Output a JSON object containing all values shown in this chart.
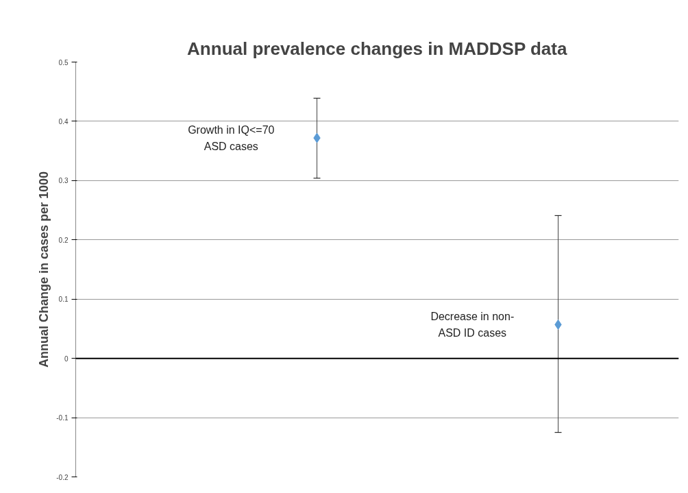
{
  "chart_data": {
    "type": "scatter",
    "title": "Annual prevalence changes in MADDSP data",
    "ylabel": "Annual Change in cases per 1000",
    "categories": [
      null,
      null
    ],
    "series": [
      {
        "color": "#5b9bd5",
        "values": [
          0.372,
          0.057
        ],
        "errors": [
          [
            0.304,
            0.439
          ],
          [
            -0.125,
            0.241
          ]
        ]
      }
    ],
    "annotations": [
      "Growth in IQ<=70 ASD cases",
      "Decrease in non-ASD ID cases"
    ],
    "ylim": [
      -0.2,
      0.5
    ],
    "yticks": [
      -0.2,
      -0.1,
      0,
      0.1,
      0.2,
      0.3,
      0.4,
      0.5
    ],
    "ref_lines": [
      {
        "axis": "y",
        "value": 0,
        "color": "#000000"
      }
    ],
    "grid": "y",
    "marker": "diamond",
    "tick_labels": "y"
  }
}
